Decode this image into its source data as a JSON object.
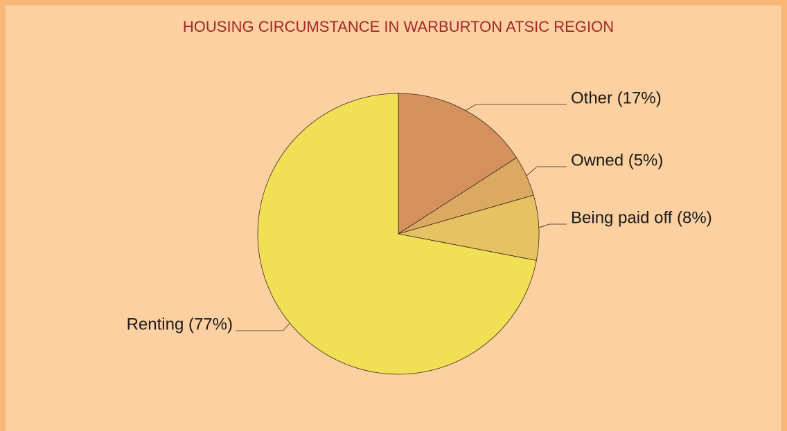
{
  "chart_data": {
    "type": "pie",
    "title": "HOUSING CIRCUMSTANCE IN WARBURTON ATSIC REGION",
    "categories": [
      "Other (17%)",
      "Owned (5%)",
      "Being paid off (8%)",
      "Renting (77%)"
    ],
    "values": [
      17,
      5,
      8,
      77
    ],
    "colors": [
      "#d4915d",
      "#dca962",
      "#e6c262",
      "#f1df55"
    ]
  }
}
